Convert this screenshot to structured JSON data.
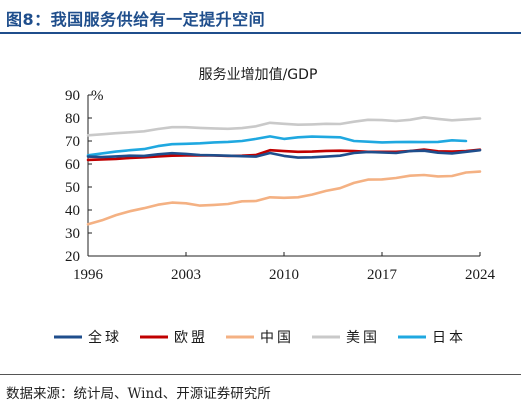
{
  "figure_title": "图8：我国服务供给有一定提升空间",
  "source_note": "数据来源：统计局、Wind、开源证券研究所",
  "colors": {
    "global": "#1f4e8c",
    "eu": "#c00000",
    "china": "#f4b183",
    "usa": "#c9c9c9",
    "japan": "#1fa8e0",
    "title_blue": "#1f4e8c"
  },
  "chart_data": {
    "type": "line",
    "title": "服务业增加值/GDP",
    "ylabel": "%",
    "xlabel": "",
    "xlim": [
      1996,
      2024
    ],
    "ylim": [
      20,
      90
    ],
    "xticks": [
      1996,
      2003,
      2010,
      2017,
      2024
    ],
    "yticks": [
      20,
      30,
      40,
      50,
      60,
      70,
      80,
      90
    ],
    "grid": false,
    "legend_position": "bottom",
    "x": [
      1996,
      1997,
      1998,
      1999,
      2000,
      2001,
      2002,
      2003,
      2004,
      2005,
      2006,
      2007,
      2008,
      2009,
      2010,
      2011,
      2012,
      2013,
      2014,
      2015,
      2016,
      2017,
      2018,
      2019,
      2020,
      2021,
      2022,
      2023,
      2024
    ],
    "series": [
      {
        "name": "全球",
        "key": "global",
        "values": [
          63.2,
          63.0,
          63.3,
          63.6,
          63.5,
          64.2,
          64.7,
          64.4,
          63.9,
          63.8,
          63.6,
          63.4,
          63.2,
          64.8,
          63.5,
          62.8,
          62.9,
          63.2,
          63.6,
          64.8,
          65.2,
          65.0,
          64.8,
          65.6,
          65.8,
          64.9,
          64.6,
          65.3,
          66.0
        ]
      },
      {
        "name": "欧盟",
        "key": "eu",
        "values": [
          61.8,
          62.0,
          62.2,
          62.6,
          62.9,
          63.3,
          63.6,
          63.7,
          63.7,
          63.7,
          63.5,
          63.6,
          63.9,
          66.0,
          65.6,
          65.3,
          65.4,
          65.7,
          65.8,
          65.6,
          65.3,
          65.3,
          65.3,
          65.6,
          66.3,
          65.5,
          65.4,
          65.6,
          66.2
        ]
      },
      {
        "name": "中国",
        "key": "china",
        "values": [
          33.8,
          35.5,
          37.8,
          39.5,
          40.8,
          42.3,
          43.2,
          42.9,
          41.9,
          42.2,
          42.6,
          43.8,
          43.9,
          45.5,
          45.3,
          45.5,
          46.7,
          48.3,
          49.5,
          51.8,
          53.2,
          53.3,
          53.9,
          54.9,
          55.2,
          54.6,
          54.8,
          56.3,
          56.7
        ]
      },
      {
        "name": "美国",
        "key": "usa",
        "values": [
          72.5,
          72.9,
          73.4,
          73.8,
          74.2,
          75.2,
          76.0,
          76.0,
          75.7,
          75.5,
          75.3,
          75.6,
          76.4,
          77.9,
          77.5,
          77.1,
          77.2,
          77.5,
          77.4,
          78.4,
          79.2,
          79.1,
          78.7,
          79.2,
          80.3,
          79.6,
          79.0,
          79.4,
          79.8
        ]
      },
      {
        "name": "日本",
        "key": "japan",
        "values": [
          63.8,
          64.6,
          65.4,
          66.0,
          66.5,
          67.8,
          68.6,
          68.8,
          69.0,
          69.4,
          69.6,
          70.0,
          70.9,
          72.0,
          70.9,
          71.6,
          71.9,
          71.8,
          71.6,
          70.0,
          69.7,
          69.4,
          69.5,
          69.6,
          69.5,
          69.6,
          70.3,
          70.0,
          null
        ]
      }
    ]
  }
}
